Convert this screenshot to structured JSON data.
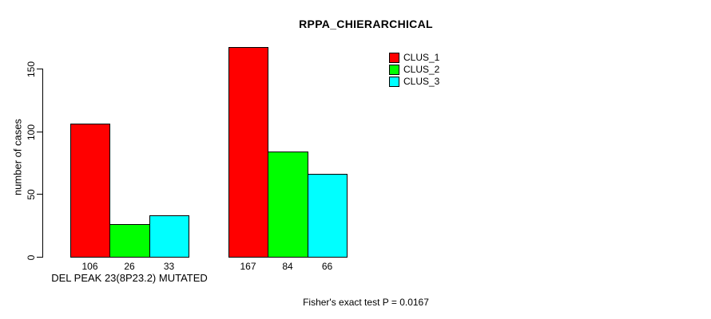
{
  "chart_data": {
    "type": "bar",
    "title": "RPPA_CHIERARCHICAL",
    "ylabel": "number of cases",
    "xlabel": "",
    "ylim": [
      0,
      150
    ],
    "yticks": [
      0,
      50,
      100,
      150
    ],
    "grid": false,
    "legend_position": "top-right",
    "categories": [
      "DEL PEAK 23(8P23.2) MUTATED",
      ""
    ],
    "series": [
      {
        "name": "CLUS_1",
        "color": "#FF0000",
        "values": [
          106,
          167
        ]
      },
      {
        "name": "CLUS_2",
        "color": "#00FF00",
        "values": [
          26,
          84
        ]
      },
      {
        "name": "CLUS_3",
        "color": "#00FFFF",
        "values": [
          33,
          66
        ]
      }
    ],
    "show_value_labels": true,
    "bar_border_color": "#000000",
    "annotation": "Fisher's exact test P = 0.0167"
  }
}
